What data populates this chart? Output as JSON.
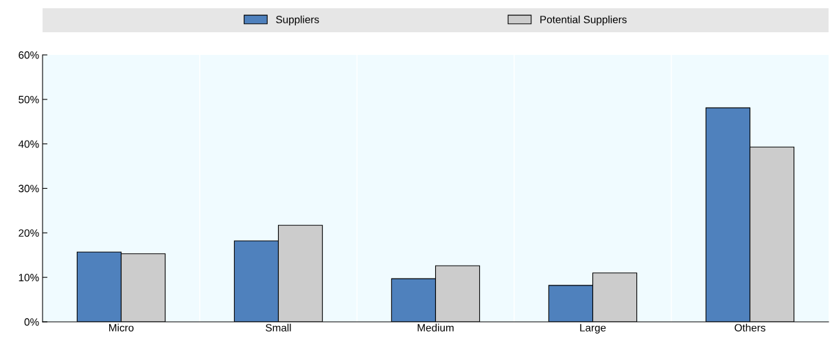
{
  "chart_data": {
    "type": "bar",
    "categories": [
      "Micro",
      "Small",
      "Medium",
      "Large",
      "Others"
    ],
    "series": [
      {
        "name": "Suppliers",
        "color": "#4f81bd",
        "values": [
          15.7,
          18.2,
          9.7,
          8.2,
          48.1
        ]
      },
      {
        "name": "Potential Suppliers",
        "color": "#cccccc",
        "values": [
          15.3,
          21.7,
          12.6,
          11.0,
          39.3
        ]
      }
    ],
    "ylim": [
      0,
      60
    ],
    "yticks": [
      {
        "value": 0,
        "label": "0%"
      },
      {
        "value": 10,
        "label": "10%"
      },
      {
        "value": 20,
        "label": "20%"
      },
      {
        "value": 30,
        "label": "30%"
      },
      {
        "value": 40,
        "label": "40%"
      },
      {
        "value": 50,
        "label": "50%"
      },
      {
        "value": 60,
        "label": "60%"
      }
    ],
    "legend": "top"
  }
}
